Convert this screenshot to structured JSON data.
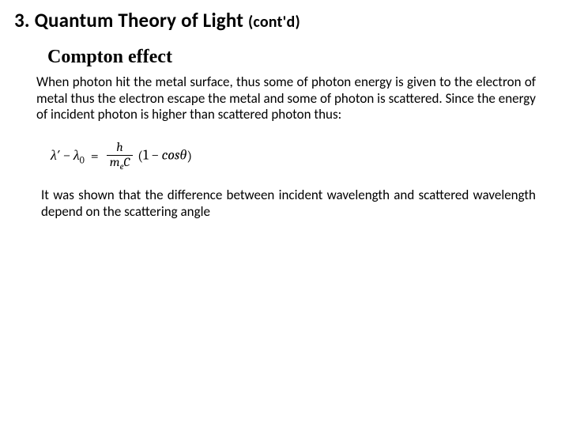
{
  "colors": {
    "background": "#ffffff",
    "text": "#000000"
  },
  "fonts": {
    "main": "Calibri",
    "subheading": "Times New Roman",
    "equation": "Cambria"
  },
  "section": {
    "title_main": "3. Quantum Theory of Light ",
    "title_contd": "(cont'd)"
  },
  "subheading": "Compton effect",
  "paragraph1": "When photon hit the metal surface, thus some of photon energy is given to the electron of metal thus the electron escape the metal and some of photon is scattered. Since the energy of incident photon is higher than scattered photon thus:",
  "equation": {
    "lhs_lambda_prime": "λ′",
    "lhs_minus": " − ",
    "lhs_lambda0": "λ",
    "lhs_sub0": "0",
    "equals": "=",
    "numerator": "h",
    "denom_m": "m",
    "denom_sub": "e",
    "denom_C": "C",
    "paren_open": "(",
    "one": "1",
    "minus": " − ",
    "cos": "cos",
    "theta": "θ",
    "paren_close": ")"
  },
  "paragraph2": "It was shown that the difference between incident wavelength and scattered wavelength depend on the scattering angle"
}
